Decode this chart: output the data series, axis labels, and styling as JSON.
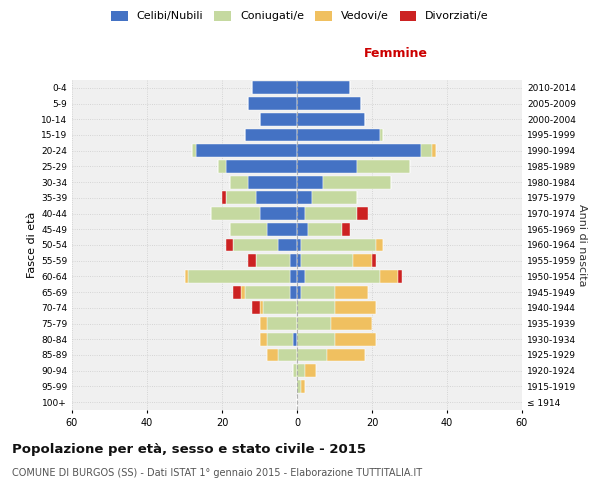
{
  "age_groups": [
    "100+",
    "95-99",
    "90-94",
    "85-89",
    "80-84",
    "75-79",
    "70-74",
    "65-69",
    "60-64",
    "55-59",
    "50-54",
    "45-49",
    "40-44",
    "35-39",
    "30-34",
    "25-29",
    "20-24",
    "15-19",
    "10-14",
    "5-9",
    "0-4"
  ],
  "birth_years": [
    "≤ 1914",
    "1915-1919",
    "1920-1924",
    "1925-1929",
    "1930-1934",
    "1935-1939",
    "1940-1944",
    "1945-1949",
    "1950-1954",
    "1955-1959",
    "1960-1964",
    "1965-1969",
    "1970-1974",
    "1975-1979",
    "1980-1984",
    "1985-1989",
    "1990-1994",
    "1995-1999",
    "2000-2004",
    "2005-2009",
    "2010-2014"
  ],
  "male": {
    "celibi": [
      0,
      0,
      0,
      0,
      1,
      0,
      0,
      2,
      2,
      2,
      5,
      8,
      10,
      11,
      13,
      19,
      27,
      14,
      10,
      13,
      12
    ],
    "coniugati": [
      0,
      0,
      1,
      5,
      7,
      8,
      9,
      12,
      27,
      9,
      12,
      10,
      13,
      8,
      5,
      2,
      1,
      0,
      0,
      0,
      0
    ],
    "vedovi": [
      0,
      0,
      0,
      3,
      2,
      2,
      1,
      1,
      1,
      0,
      0,
      0,
      0,
      0,
      0,
      0,
      0,
      0,
      0,
      0,
      0
    ],
    "divorziati": [
      0,
      0,
      0,
      0,
      0,
      0,
      2,
      2,
      0,
      2,
      2,
      0,
      0,
      1,
      0,
      0,
      0,
      0,
      0,
      0,
      0
    ]
  },
  "female": {
    "nubili": [
      0,
      0,
      0,
      0,
      0,
      0,
      0,
      1,
      2,
      1,
      1,
      3,
      2,
      4,
      7,
      16,
      33,
      22,
      18,
      17,
      14
    ],
    "coniugate": [
      0,
      1,
      2,
      8,
      10,
      9,
      10,
      9,
      20,
      14,
      20,
      9,
      14,
      12,
      18,
      14,
      3,
      1,
      0,
      0,
      0
    ],
    "vedove": [
      0,
      1,
      3,
      10,
      11,
      11,
      11,
      9,
      5,
      5,
      2,
      0,
      0,
      0,
      0,
      0,
      1,
      0,
      0,
      0,
      0
    ],
    "divorziate": [
      0,
      0,
      0,
      0,
      0,
      0,
      0,
      0,
      1,
      1,
      0,
      2,
      3,
      0,
      0,
      0,
      0,
      0,
      0,
      0,
      0
    ]
  },
  "colors": {
    "celibi": "#4472c4",
    "coniugati": "#c5d9a0",
    "vedovi": "#f0c060",
    "divorziati": "#cc2222"
  },
  "title": "Popolazione per età, sesso e stato civile - 2015",
  "subtitle": "COMUNE DI BURGOS (SS) - Dati ISTAT 1° gennaio 2015 - Elaborazione TUTTITALIA.IT",
  "xlabel_right": "Femmine",
  "ylabel_left": "Fasce di età",
  "ylabel_right": "Anni di nascita",
  "xlim": 60,
  "background_color": "#ffffff",
  "plot_bg_color": "#f0f0f0",
  "grid_color": "#cccccc"
}
